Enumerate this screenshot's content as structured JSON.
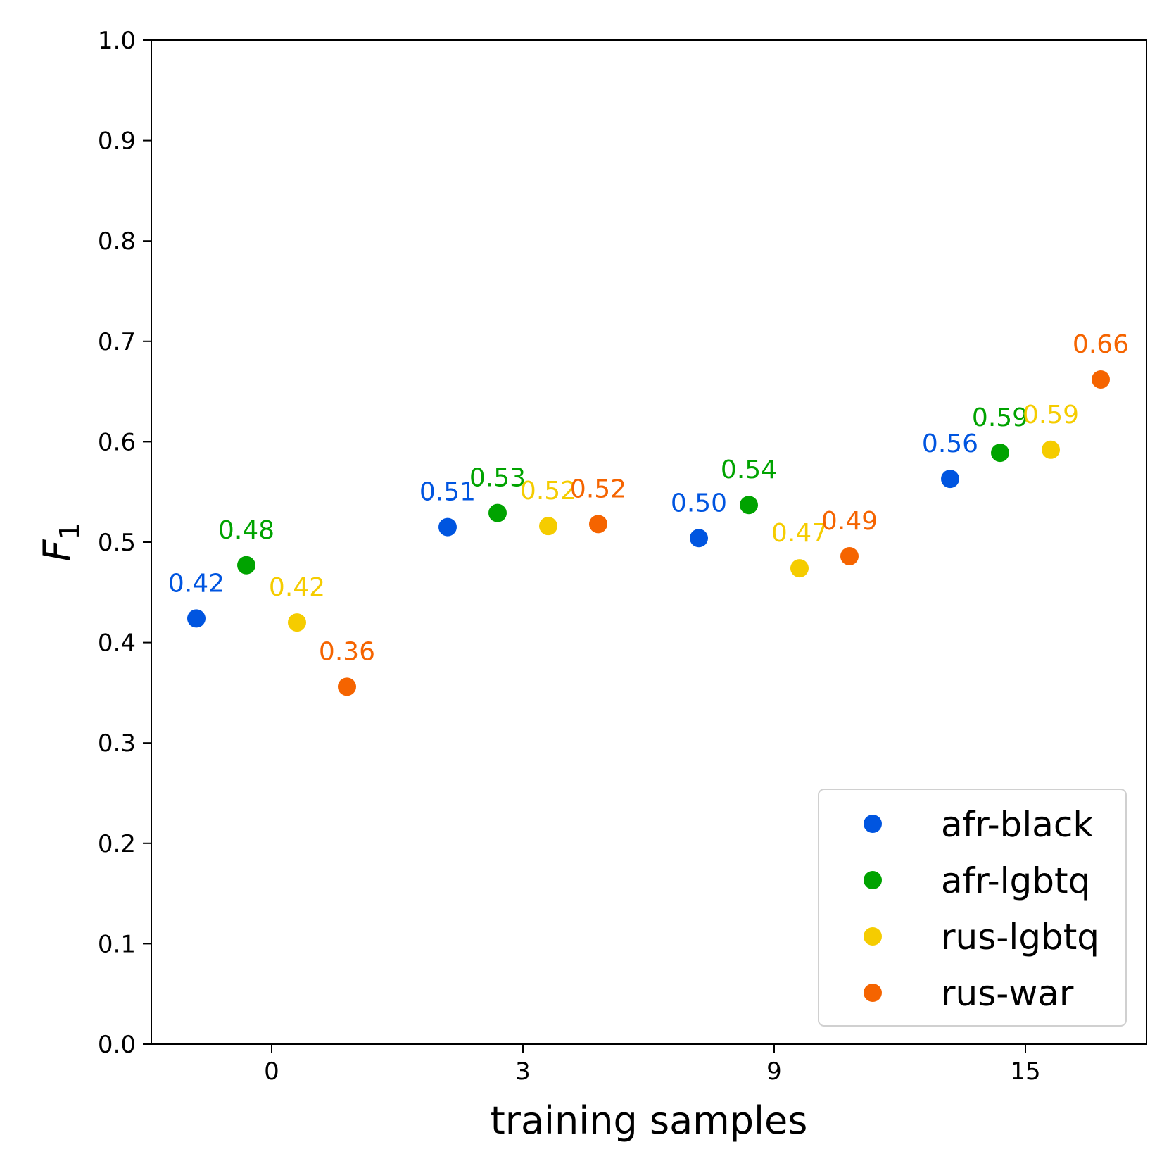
{
  "chart_data": {
    "type": "scatter",
    "xlabel": "training samples",
    "ylabel_base": "F",
    "ylabel_sub": "1",
    "ylim": [
      0.0,
      1.0
    ],
    "yticks": [
      "0.0",
      "0.1",
      "0.2",
      "0.3",
      "0.4",
      "0.5",
      "0.6",
      "0.7",
      "0.8",
      "0.9",
      "1.0"
    ],
    "categories": [
      "0",
      "3",
      "9",
      "15"
    ],
    "grid": false,
    "legend_position": "lower-right",
    "series": [
      {
        "name": "afr-black",
        "color": "#0055e0",
        "values": [
          0.424,
          0.515,
          0.504,
          0.563
        ],
        "labels": [
          "0.42",
          "0.51",
          "0.50",
          "0.56"
        ]
      },
      {
        "name": "afr-lgbtq",
        "color": "#00a300",
        "values": [
          0.477,
          0.529,
          0.537,
          0.589
        ],
        "labels": [
          "0.48",
          "0.53",
          "0.54",
          "0.59"
        ]
      },
      {
        "name": "rus-lgbtq",
        "color": "#f5cc00",
        "values": [
          0.42,
          0.516,
          0.474,
          0.592
        ],
        "labels": [
          "0.42",
          "0.52",
          "0.47",
          "0.59"
        ]
      },
      {
        "name": "rus-war",
        "color": "#f56400",
        "values": [
          0.356,
          0.518,
          0.486,
          0.662
        ],
        "labels": [
          "0.36",
          "0.52",
          "0.49",
          "0.66"
        ]
      }
    ]
  }
}
